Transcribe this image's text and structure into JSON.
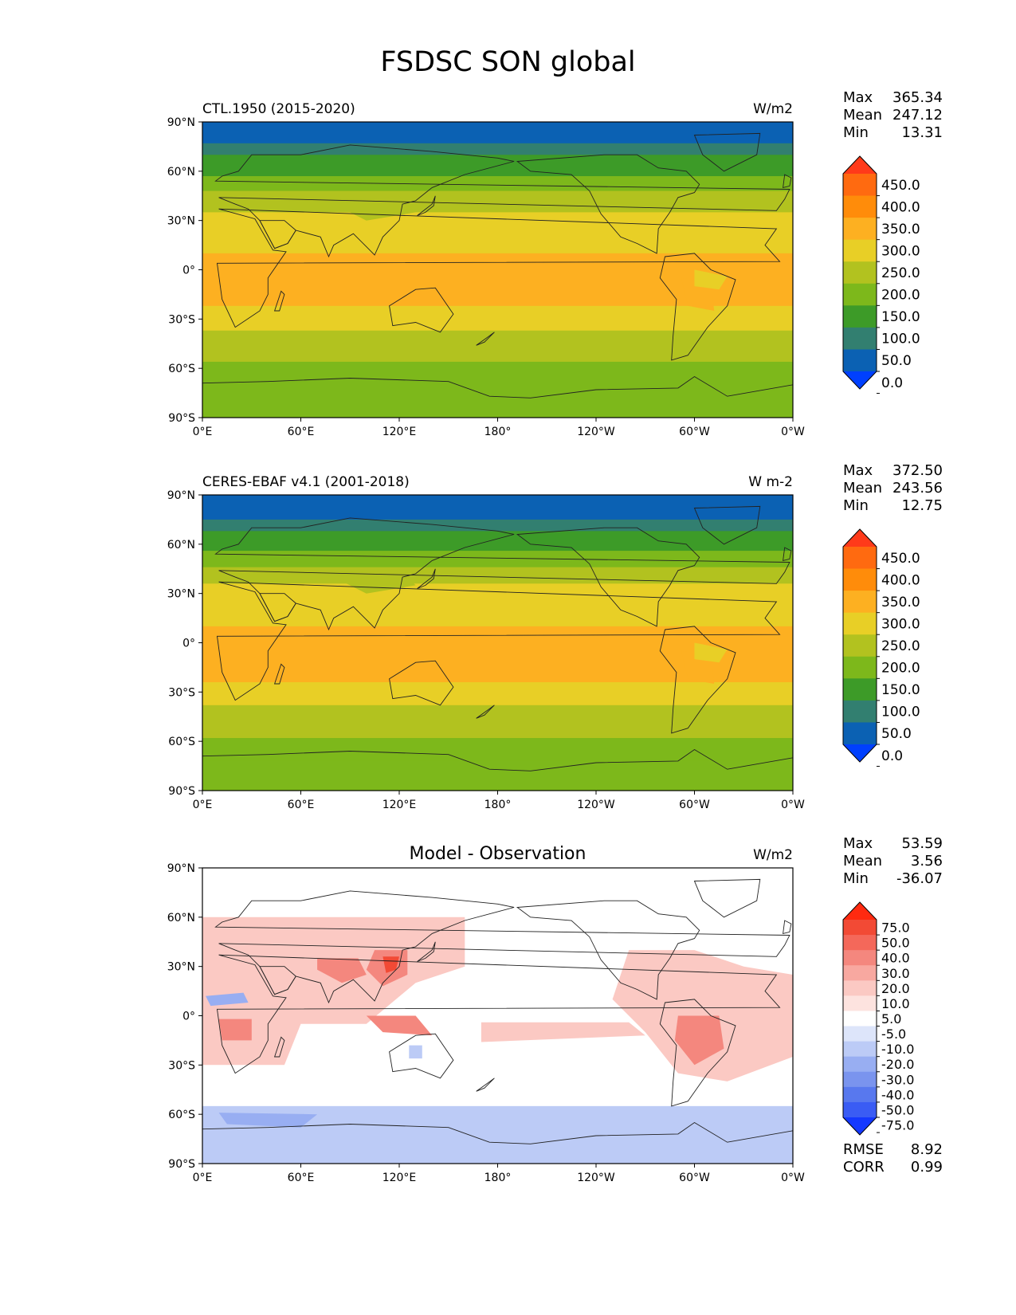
{
  "title": "FSDSC SON global",
  "axes": {
    "lat_ticks": [
      "90°N",
      "60°N",
      "30°N",
      "0°",
      "30°S",
      "60°S",
      "90°S"
    ],
    "lon_ticks": [
      "0°E",
      "60°E",
      "120°E",
      "180°",
      "120°W",
      "60°W",
      "0°W"
    ]
  },
  "stat_labels": {
    "max": "Max",
    "mean": "Mean",
    "min": "Min",
    "rmse": "RMSE",
    "corr": "CORR"
  },
  "panels": [
    {
      "id": "model",
      "left_title": "CTL.1950 (2015-2020)",
      "center_title": "",
      "units": "W/m2",
      "stats": {
        "max": "365.34",
        "mean": "247.12",
        "min": "13.31"
      },
      "colorbar": {
        "labels": [
          "450.0",
          "400.0",
          "350.0",
          "300.0",
          "250.0",
          "200.0",
          "150.0",
          "100.0",
          "50.0",
          "0.0"
        ],
        "colors": [
          "#ff3a1a",
          "#ff6a10",
          "#ff8c0a",
          "#fdb021",
          "#e8cf26",
          "#b2c21f",
          "#7db81b",
          "#3d9b28",
          "#327f70",
          "#0b61b3",
          "#0040ff"
        ]
      }
    },
    {
      "id": "obs",
      "left_title": "CERES-EBAF v4.1 (2001-2018)",
      "center_title": "",
      "units": "W m-2",
      "stats": {
        "max": "372.50",
        "mean": "243.56",
        "min": "12.75"
      },
      "colorbar": {
        "labels": [
          "450.0",
          "400.0",
          "350.0",
          "300.0",
          "250.0",
          "200.0",
          "150.0",
          "100.0",
          "50.0",
          "0.0"
        ],
        "colors": [
          "#ff3a1a",
          "#ff6a10",
          "#ff8c0a",
          "#fdb021",
          "#e8cf26",
          "#b2c21f",
          "#7db81b",
          "#3d9b28",
          "#327f70",
          "#0b61b3",
          "#0040ff"
        ]
      }
    },
    {
      "id": "diff",
      "left_title": "",
      "center_title": "Model - Observation",
      "units": "W/m2",
      "stats": {
        "max": "53.59",
        "mean": "3.56",
        "min": "-36.07"
      },
      "extra_stats": {
        "rmse": "8.92",
        "corr": "0.99"
      },
      "colorbar": {
        "labels": [
          "75.0",
          "50.0",
          "40.0",
          "30.0",
          "20.0",
          "10.0",
          "5.0",
          "-5.0",
          "-10.0",
          "-20.0",
          "-30.0",
          "-40.0",
          "-50.0",
          "-75.0"
        ],
        "colors": [
          "#ff2a10",
          "#f24a35",
          "#f4685a",
          "#f4877e",
          "#f8a8a0",
          "#fbc9c3",
          "#fde3df",
          "#ffffff",
          "#dde5fa",
          "#bccbf6",
          "#98aef2",
          "#7a94ee",
          "#5878ee",
          "#3a5cf4",
          "#1438ff"
        ]
      }
    }
  ],
  "field_colors": {
    "polar_n": "#0b61b3",
    "teal": "#327f70",
    "green": "#3d9b28",
    "light_green": "#7db81b",
    "olive": "#b2c21f",
    "yellow": "#e8cf26",
    "orange": "#fdb021",
    "diff_white": "#ffffff",
    "diff_pink": "#fbc9c3",
    "diff_red": "#f4877e",
    "diff_dark_red": "#f24a35",
    "diff_light_blue": "#bccbf6",
    "diff_blue": "#98aef2"
  }
}
